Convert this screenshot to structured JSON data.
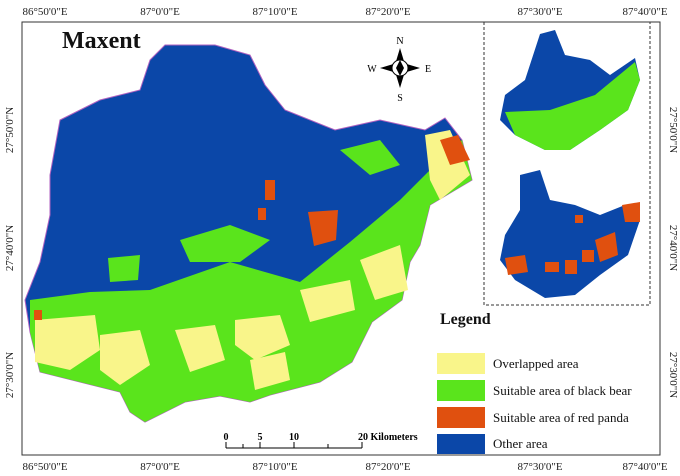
{
  "title": "Maxent",
  "top_labels": [
    "86°50'0\"E",
    "87°0'0\"E",
    "87°10'0\"E",
    "87°20'0\"E",
    "87°30'0\"E",
    "87°40'0\"E"
  ],
  "bottom_labels": [
    "86°50'0\"E",
    "87°0'0\"E",
    "87°10'0\"E",
    "87°20'0\"E",
    "87°30'0\"E",
    "87°40'0\"E"
  ],
  "left_labels": [
    "27°50'0\"N",
    "27°40'0\"N",
    "27°30'0\"N"
  ],
  "right_labels": [
    "27°50'0\"N",
    "27°40'0\"N",
    "27°30'0\"N"
  ],
  "compass": {
    "n": "N",
    "s": "S",
    "e": "E",
    "w": "W"
  },
  "legend": {
    "title": "Legend",
    "items": [
      "Overlapped area",
      "Suitable area of black bear",
      "Suitable area of red panda",
      "Other area"
    ]
  },
  "scale_bar": {
    "labels": [
      "0",
      "5",
      "10",
      "20 Kilometers"
    ]
  }
}
